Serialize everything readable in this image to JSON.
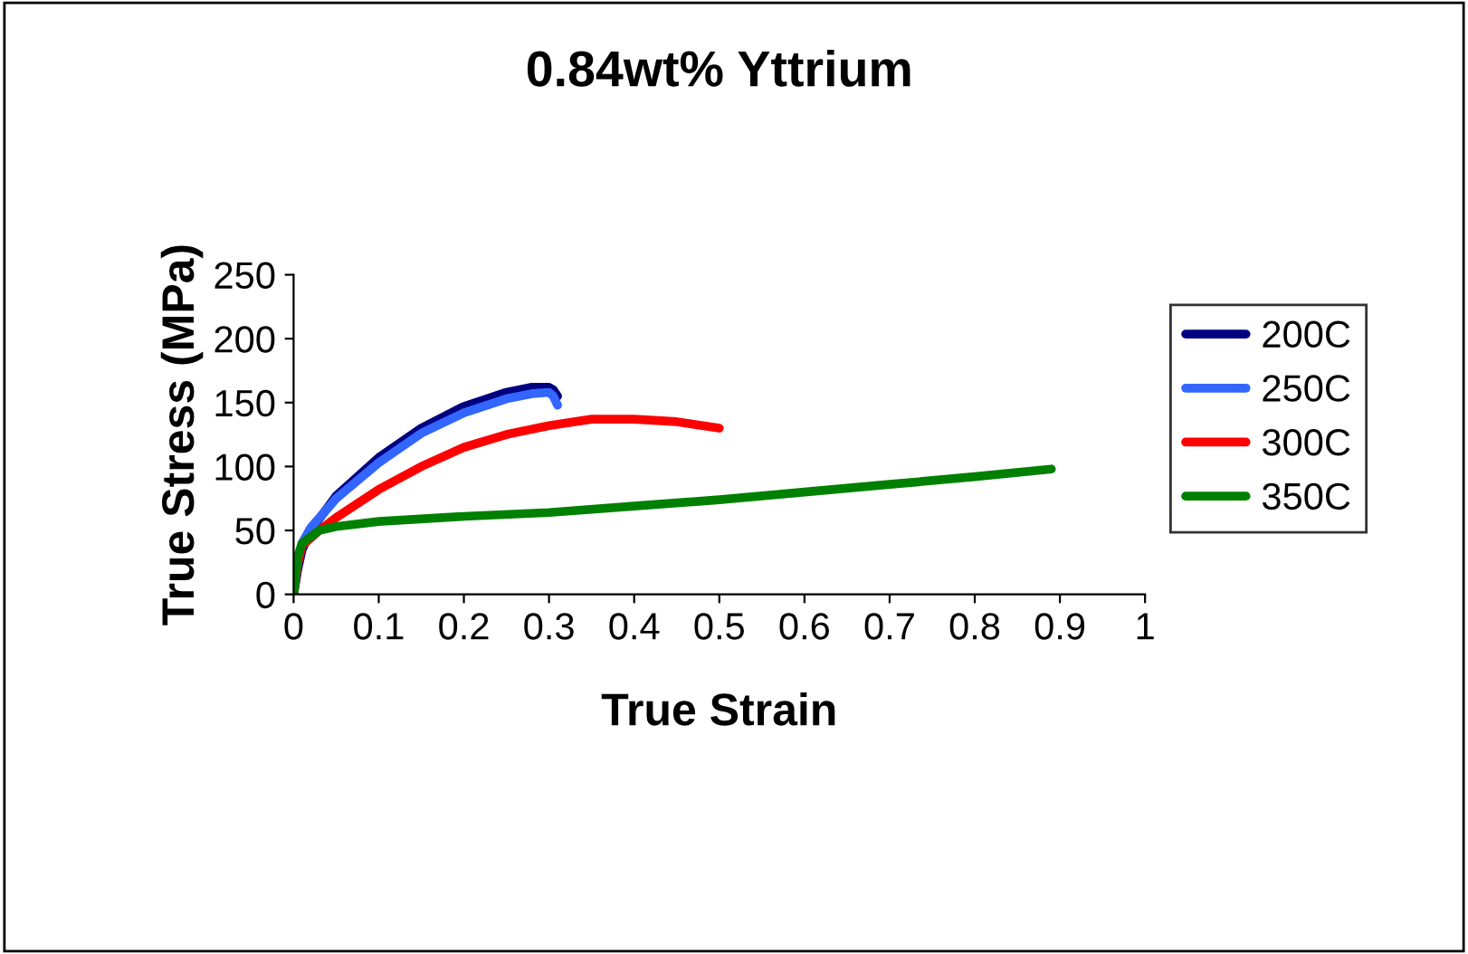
{
  "chart_data": {
    "type": "line",
    "title": "0.84wt% Yttrium",
    "xlabel": "True Strain",
    "ylabel": "True Stress (MPa)",
    "xlim": [
      0,
      1
    ],
    "xticks": [
      0,
      0.1,
      0.2,
      0.3,
      0.4,
      0.5,
      0.6,
      0.7,
      0.8,
      0.9,
      1
    ],
    "ylim": [
      0,
      250
    ],
    "yticks": [
      0,
      50,
      100,
      150,
      200,
      250
    ],
    "grid": false,
    "legend": "right",
    "marker": "none",
    "line_style": "solid",
    "series": [
      {
        "name": "200C",
        "color": "#000080",
        "x": [
          0,
          0.005,
          0.01,
          0.02,
          0.05,
          0.1,
          0.15,
          0.2,
          0.25,
          0.28,
          0.3,
          0.305,
          0.31
        ],
        "values": [
          0,
          20,
          35,
          50,
          77,
          107,
          130,
          147,
          158,
          162,
          162,
          160,
          155
        ]
      },
      {
        "name": "250C",
        "color": "#3366ff",
        "x": [
          0,
          0.005,
          0.01,
          0.02,
          0.05,
          0.1,
          0.15,
          0.2,
          0.25,
          0.28,
          0.3,
          0.305,
          0.31
        ],
        "values": [
          0,
          25,
          40,
          52,
          75,
          103,
          126,
          142,
          153,
          157,
          158,
          155,
          148
        ]
      },
      {
        "name": "300C",
        "color": "#ff0000",
        "x": [
          0,
          0.005,
          0.01,
          0.03,
          0.05,
          0.1,
          0.15,
          0.2,
          0.25,
          0.3,
          0.35,
          0.4,
          0.45,
          0.5
        ],
        "values": [
          0,
          25,
          38,
          50,
          60,
          82,
          100,
          115,
          125,
          132,
          137,
          137,
          135,
          130
        ]
      },
      {
        "name": "350C",
        "color": "#008000",
        "x": [
          0,
          0.005,
          0.01,
          0.03,
          0.05,
          0.1,
          0.2,
          0.3,
          0.4,
          0.5,
          0.6,
          0.7,
          0.8,
          0.89
        ],
        "values": [
          0,
          30,
          40,
          50,
          53,
          57,
          61,
          64,
          69,
          74,
          80,
          86,
          92,
          98
        ]
      }
    ]
  }
}
